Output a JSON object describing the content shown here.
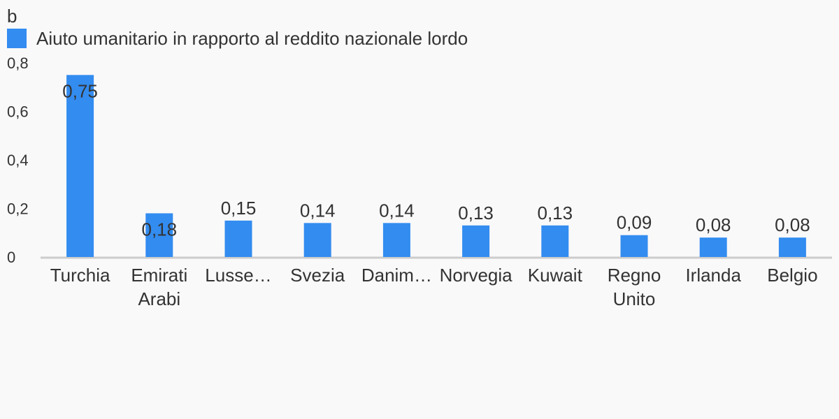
{
  "header": {
    "corner_label": "b"
  },
  "colors": {
    "bar": "#338cf0",
    "axis": "#cccccc",
    "text": "#333333",
    "background": "#f9f9f9"
  },
  "chart_data": {
    "type": "bar",
    "categories": [
      [
        "Turchia"
      ],
      [
        "Emirati",
        "Arabi"
      ],
      [
        "Lusse…"
      ],
      [
        "Svezia"
      ],
      [
        "Danim…"
      ],
      [
        "Norvegia"
      ],
      [
        "Kuwait"
      ],
      [
        "Regno",
        "Unito"
      ],
      [
        "Irlanda"
      ],
      [
        "Belgio"
      ]
    ],
    "series": [
      {
        "name": "Aiuto umanitario in rapporto al reddito nazionale lordo",
        "values": [
          0.75,
          0.18,
          0.15,
          0.14,
          0.14,
          0.13,
          0.13,
          0.09,
          0.08,
          0.08
        ],
        "value_labels": [
          "0,75",
          "0,18",
          "0,15",
          "0,14",
          "0,14",
          "0,13",
          "0,13",
          "0,09",
          "0,08",
          "0,08"
        ]
      }
    ],
    "yticks": [
      0,
      0.2,
      0.4,
      0.6,
      0.8
    ],
    "ytick_labels": [
      "0",
      "0,2",
      "0,4",
      "0,6",
      "0,8"
    ],
    "ylim": [
      0,
      0.8
    ],
    "grid": false,
    "legend_position": "top-left"
  }
}
